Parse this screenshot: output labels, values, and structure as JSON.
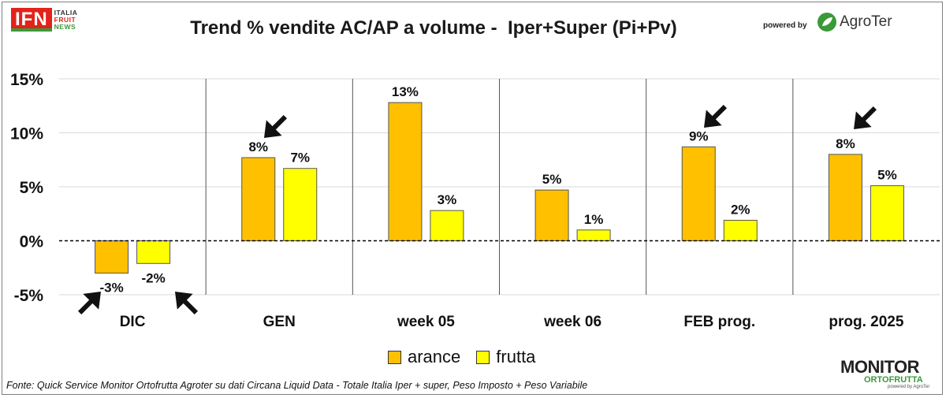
{
  "header": {
    "logo_main": "IFN",
    "logo_lines": [
      "ITALIA",
      "FRUIT",
      "NEWS"
    ],
    "title": "Trend % vendite AC/AP a volume -  Iper+Super (Pi+Pv)",
    "powered_by": "powered by",
    "sponsor": "AgroTer"
  },
  "colors": {
    "arance": "#ffc000",
    "frutta": "#ffff00",
    "bar_stroke": "#555555",
    "arrow": "#111111"
  },
  "chart_data": {
    "type": "bar",
    "categories": [
      "DIC",
      "GEN",
      "week 05",
      "week 06",
      "FEB prog.",
      "prog. 2025"
    ],
    "series": [
      {
        "name": "arance",
        "values": [
          -3,
          7.7,
          12.8,
          4.7,
          8.7,
          8.0
        ],
        "labels": [
          "-3%",
          "8%",
          "13%",
          "5%",
          "9%",
          "8%"
        ]
      },
      {
        "name": "frutta",
        "values": [
          -2.1,
          6.7,
          2.8,
          1.0,
          1.9,
          5.1
        ],
        "labels": [
          "-2%",
          "7%",
          "3%",
          "1%",
          "2%",
          "5%"
        ]
      }
    ],
    "yticks": [
      "15%",
      "10%",
      "5%",
      "0%",
      "-5%"
    ],
    "ytick_values": [
      15,
      10,
      5,
      0,
      -5
    ],
    "ylim": [
      -5,
      15
    ],
    "grid": true,
    "legend": "bottom-center",
    "highlight_arrows": "arance: DIC, GEN, FEB prog., prog. 2025; frutta: DIC"
  },
  "legend": [
    {
      "label": "arance"
    },
    {
      "label": "frutta"
    }
  ],
  "footnote": "Fonte: Quick Service Monitor Ortofrutta Agroter su dati Circana Liquid Data - Totale Italia Iper + super, Peso Imposto + Peso Variabile",
  "brand": {
    "monitor_line1": "MONITOR",
    "monitor_line2": "ORTOFRUTTA",
    "monitor_line3": "powered by AgroTer"
  }
}
